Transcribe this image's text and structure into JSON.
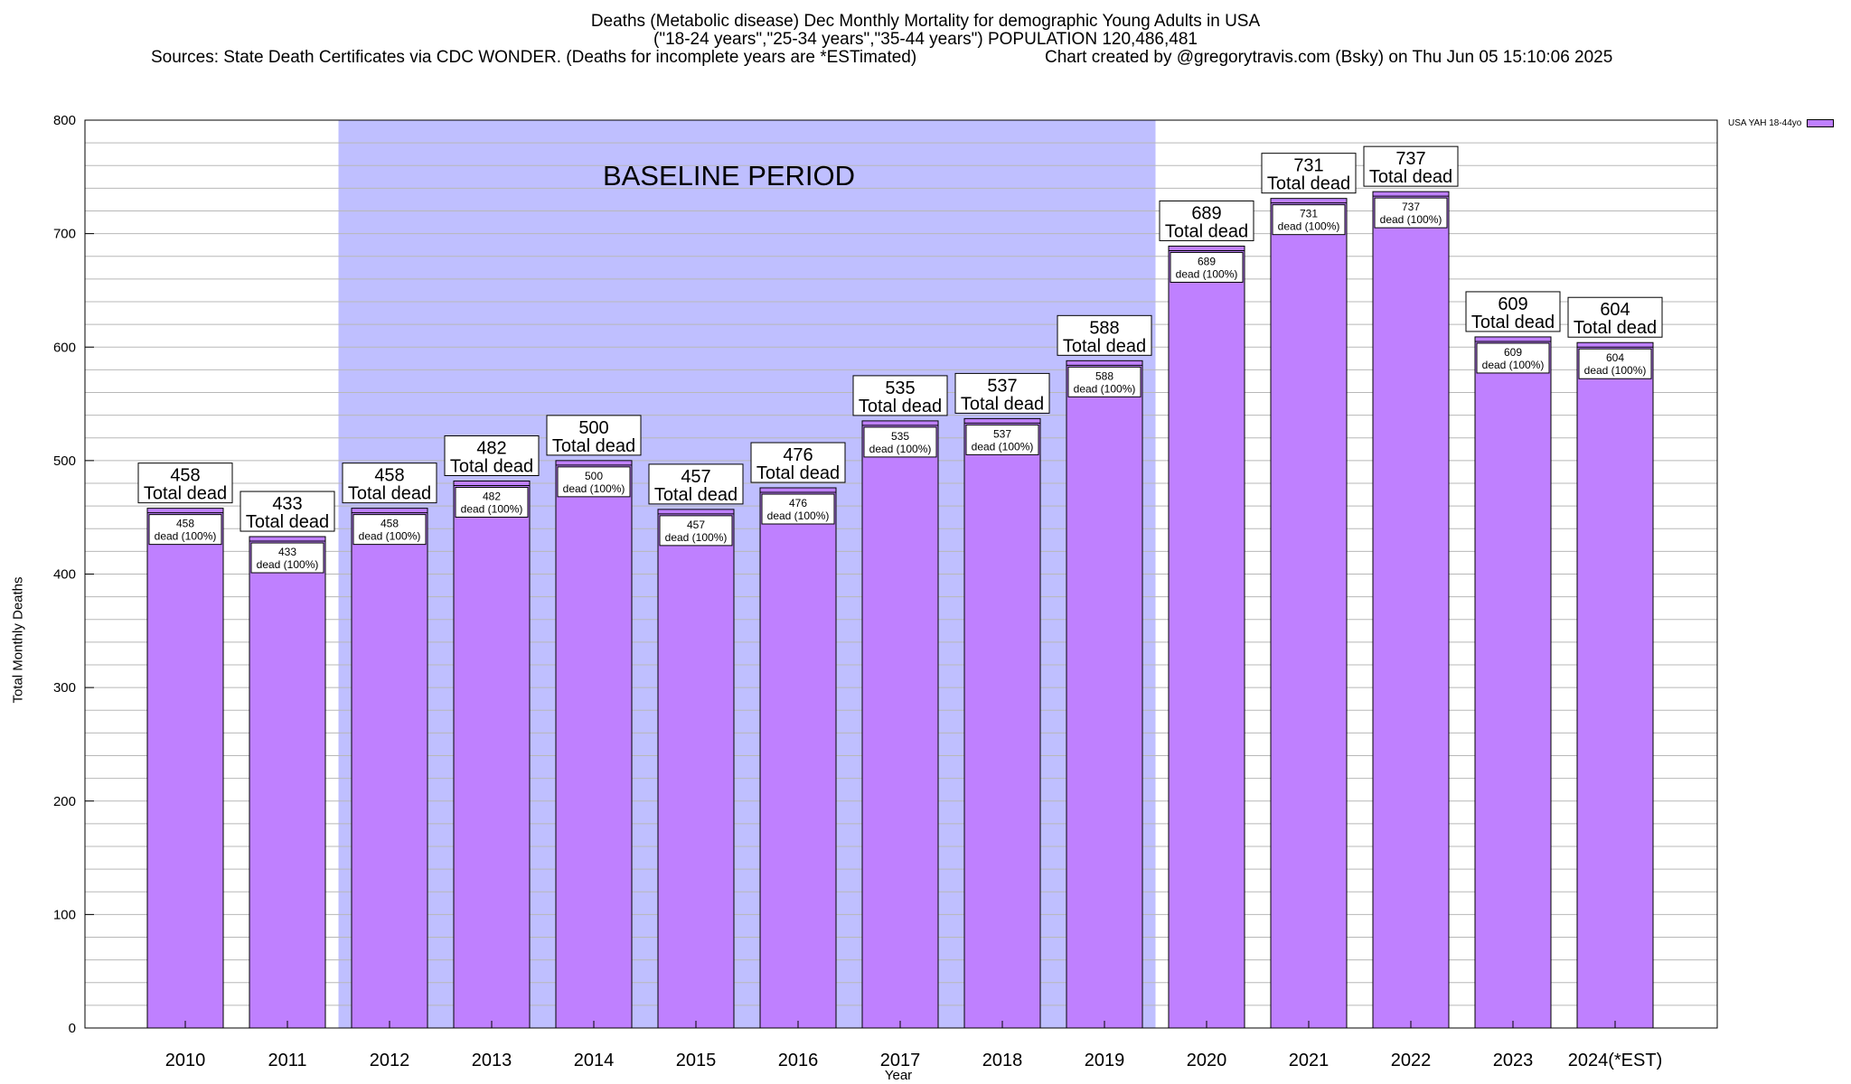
{
  "chart_data": {
    "type": "bar",
    "title_line1": "Deaths (Metabolic disease) Dec Monthly Mortality for demographic Young Adults in USA",
    "title_line2": "(\"18-24 years\",\"25-34 years\",\"35-44 years\") POPULATION 120,486,481",
    "sources": "Sources: State Death Certificates via CDC WONDER. (Deaths for incomplete years are *ESTimated)",
    "credit": "Chart created by @gregorytravis.com (Bsky) on Thu Jun 05 15:10:06 2025",
    "xlabel": "Year",
    "ylabel": "Total Monthly Deaths",
    "ylim": [
      0,
      800
    ],
    "yticks": [
      0,
      100,
      200,
      300,
      400,
      500,
      600,
      700,
      800
    ],
    "minor_grid_step": 20,
    "grid": true,
    "legend_position": "top-right",
    "categories": [
      "2010",
      "2011",
      "2012",
      "2013",
      "2014",
      "2015",
      "2016",
      "2017",
      "2018",
      "2019",
      "2020",
      "2021",
      "2022",
      "2023",
      "2024(*EST)"
    ],
    "series": [
      {
        "name": "USA YAH 18-44yo",
        "color": "#bf80ff",
        "values": [
          458,
          433,
          458,
          482,
          500,
          457,
          476,
          535,
          537,
          588,
          689,
          731,
          737,
          609,
          604
        ]
      }
    ],
    "total_label_text": "Total dead",
    "inner_label_text": "dead (100%)",
    "baseline": {
      "label": "BASELINE PERIOD",
      "start": "2012",
      "end": "2019",
      "color": "#bfbfff"
    }
  }
}
